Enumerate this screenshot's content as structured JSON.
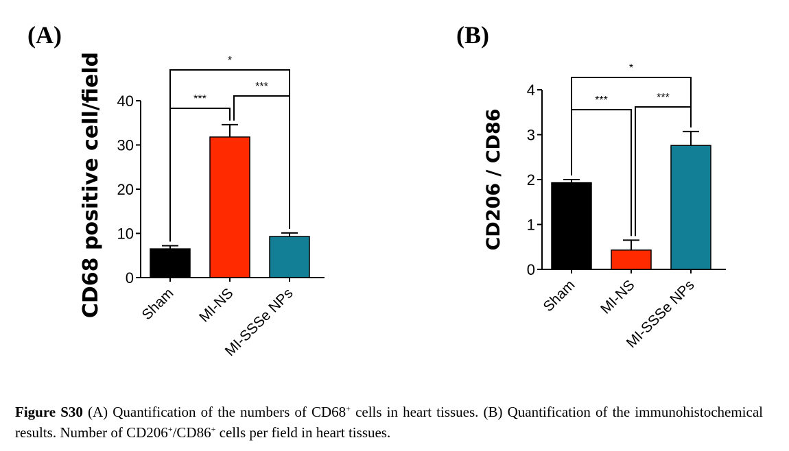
{
  "chart_data": [
    {
      "type": "bar",
      "panel_label": "(A)",
      "ylabel": "CD68 positive cell/field",
      "categories": [
        "Sham",
        "MI-NS",
        "MI-SSSe NPs"
      ],
      "values": [
        6.5,
        31.8,
        9.3
      ],
      "errors": [
        0.7,
        2.8,
        0.8
      ],
      "colors": [
        "#000000",
        "#ff2a00",
        "#137f96"
      ],
      "ylim": [
        0,
        40
      ],
      "yticks": [
        0,
        10,
        20,
        30,
        40
      ],
      "ytick_labels": [
        "0",
        "10",
        "20",
        "30",
        "40"
      ],
      "grid": false,
      "significance": [
        {
          "from": 0,
          "to": 1,
          "label": "***"
        },
        {
          "from": 1,
          "to": 2,
          "label": "***"
        },
        {
          "from": 0,
          "to": 2,
          "label": "*"
        }
      ]
    },
    {
      "type": "bar",
      "panel_label": "(B)",
      "ylabel": "CD206 / CD86",
      "categories": [
        "Sham",
        "MI-NS",
        "MI-SSSe NPs"
      ],
      "values": [
        1.93,
        0.43,
        2.76
      ],
      "errors": [
        0.07,
        0.22,
        0.31
      ],
      "colors": [
        "#000000",
        "#ff2a00",
        "#137f96"
      ],
      "ylim": [
        0,
        4
      ],
      "yticks": [
        0,
        1,
        2,
        3,
        4
      ],
      "ytick_labels": [
        "0",
        "1",
        "2",
        "3",
        "4"
      ],
      "grid": false,
      "significance": [
        {
          "from": 0,
          "to": 1,
          "label": "***"
        },
        {
          "from": 1,
          "to": 2,
          "label": "***"
        },
        {
          "from": 0,
          "to": 2,
          "label": "*"
        }
      ]
    }
  ],
  "caption": {
    "label": "Figure S30",
    "text_1": " (A) Quantification of the numbers of CD68",
    "sup_1": "+",
    "text_2": " cells in heart tissues. (B) Quantification of the immunohistochemical results. Number of CD206",
    "sup_2": "+",
    "text_3": "/CD86",
    "sup_3": "+",
    "text_4": " cells per field in heart tissues."
  }
}
